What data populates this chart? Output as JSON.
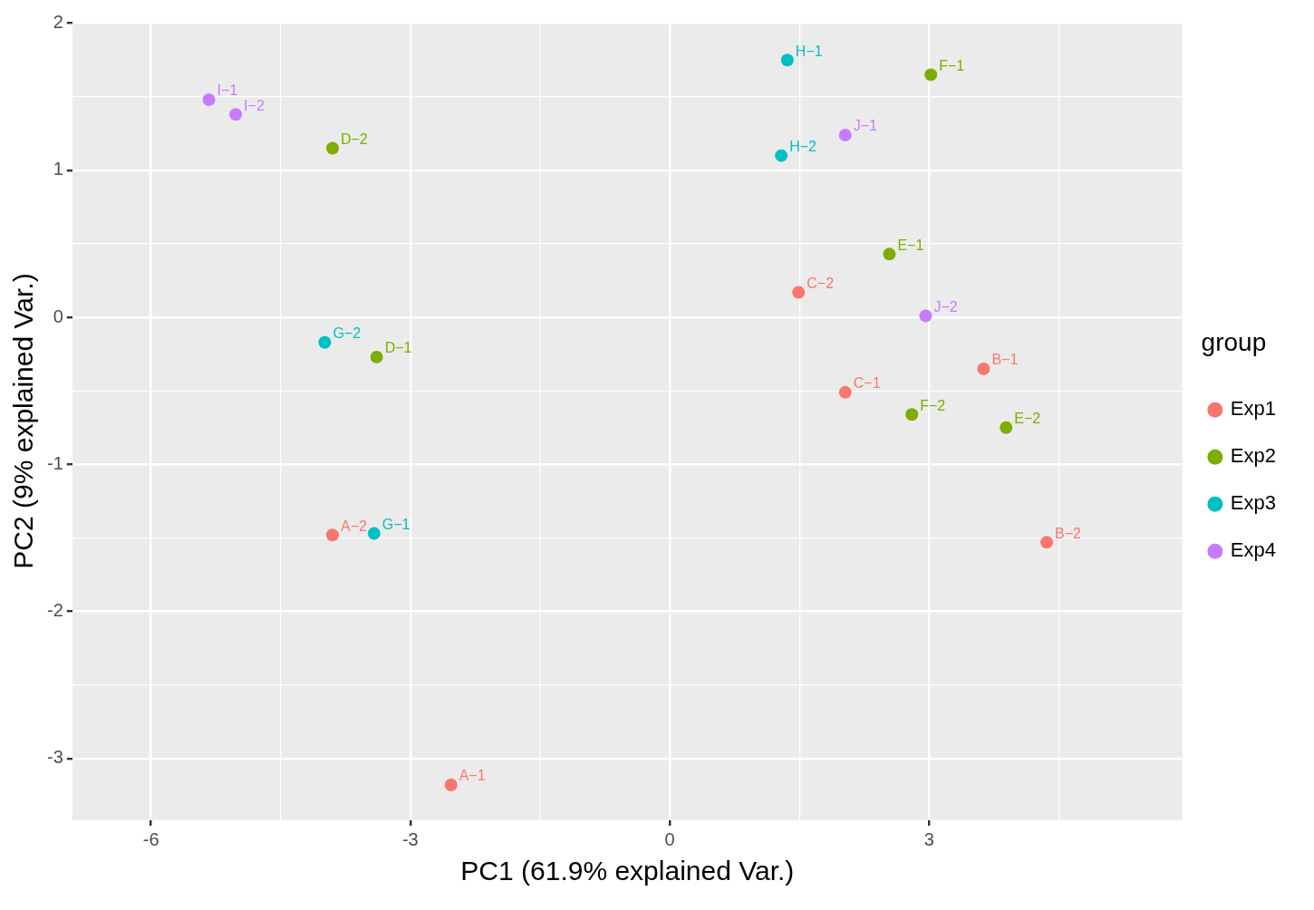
{
  "chart_data": {
    "type": "scatter",
    "xlabel": "PC1 (61.9% explained Var.)",
    "ylabel": "PC2 (9% explained Var.)",
    "legend_title": "group",
    "legend": "right",
    "marker": "circle",
    "grid": true,
    "xlim": [
      -6.91,
      5.93
    ],
    "ylim": [
      -3.42,
      2.01
    ],
    "xticks": [
      -6,
      {
        "value": -4.5,
        "label": null
      },
      -3,
      {
        "value": -1.5,
        "label": null
      },
      0,
      {
        "value": 1.5,
        "label": null
      },
      3,
      {
        "value": 4.5,
        "label": null
      }
    ],
    "yticks": [
      -3,
      {
        "value": -2.5,
        "label": null
      },
      -2,
      {
        "value": -1.5,
        "label": null
      },
      -1,
      {
        "value": -0.5,
        "label": null
      },
      0,
      {
        "value": 0.5,
        "label": null
      },
      1,
      {
        "value": 1.5,
        "label": null
      },
      2
    ],
    "series": [
      {
        "name": "Exp1",
        "color": "#f8766d",
        "x": [
          -2.53,
          -3.9,
          3.63,
          4.36,
          2.03,
          1.49
        ],
        "values": [
          -3.18,
          -1.48,
          -0.35,
          -1.53,
          -0.51,
          0.17
        ]
      },
      {
        "name": "Exp2",
        "color": "#7cae00",
        "x": [
          -3.39,
          -3.9,
          2.54,
          3.89,
          3.02,
          2.8
        ],
        "values": [
          -0.27,
          1.15,
          0.43,
          -0.75,
          1.65,
          -0.66
        ]
      },
      {
        "name": "Exp3",
        "color": "#00bfc4",
        "x": [
          -3.42,
          -3.99,
          1.36,
          1.29
        ],
        "values": [
          -1.47,
          -0.17,
          1.75,
          1.1
        ]
      },
      {
        "name": "Exp4",
        "color": "#c77cff",
        "x": [
          -5.33,
          -5.02,
          2.03,
          2.96
        ],
        "values": [
          1.48,
          1.38,
          1.24,
          0.01
        ]
      }
    ],
    "annotations": [
      {
        "text": "A−1",
        "x": -2.53,
        "y": -3.18
      },
      {
        "text": "A−2",
        "x": -3.9,
        "y": -1.48
      },
      {
        "text": "B−1",
        "x": 3.63,
        "y": -0.35
      },
      {
        "text": "B−2",
        "x": 4.36,
        "y": -1.53
      },
      {
        "text": "C−1",
        "x": 2.03,
        "y": -0.51
      },
      {
        "text": "C−2",
        "x": 1.49,
        "y": 0.17
      },
      {
        "text": "D−1",
        "x": -3.39,
        "y": -0.27
      },
      {
        "text": "D−2",
        "x": -3.9,
        "y": 1.15
      },
      {
        "text": "E−1",
        "x": 2.54,
        "y": 0.43
      },
      {
        "text": "E−2",
        "x": 3.89,
        "y": -0.75
      },
      {
        "text": "F−1",
        "x": 3.02,
        "y": 1.65
      },
      {
        "text": "F−2",
        "x": 2.8,
        "y": -0.66
      },
      {
        "text": "G−1",
        "x": -3.42,
        "y": -1.47
      },
      {
        "text": "G−2",
        "x": -3.99,
        "y": -0.17
      },
      {
        "text": "H−1",
        "x": 1.36,
        "y": 1.75
      },
      {
        "text": "H−2",
        "x": 1.29,
        "y": 1.1
      },
      {
        "text": "I−1",
        "x": -5.33,
        "y": 1.48
      },
      {
        "text": "I−2",
        "x": -5.02,
        "y": 1.38
      },
      {
        "text": "J−1",
        "x": 2.03,
        "y": 1.24
      },
      {
        "text": "J−2",
        "x": 2.96,
        "y": 0.01
      }
    ]
  }
}
